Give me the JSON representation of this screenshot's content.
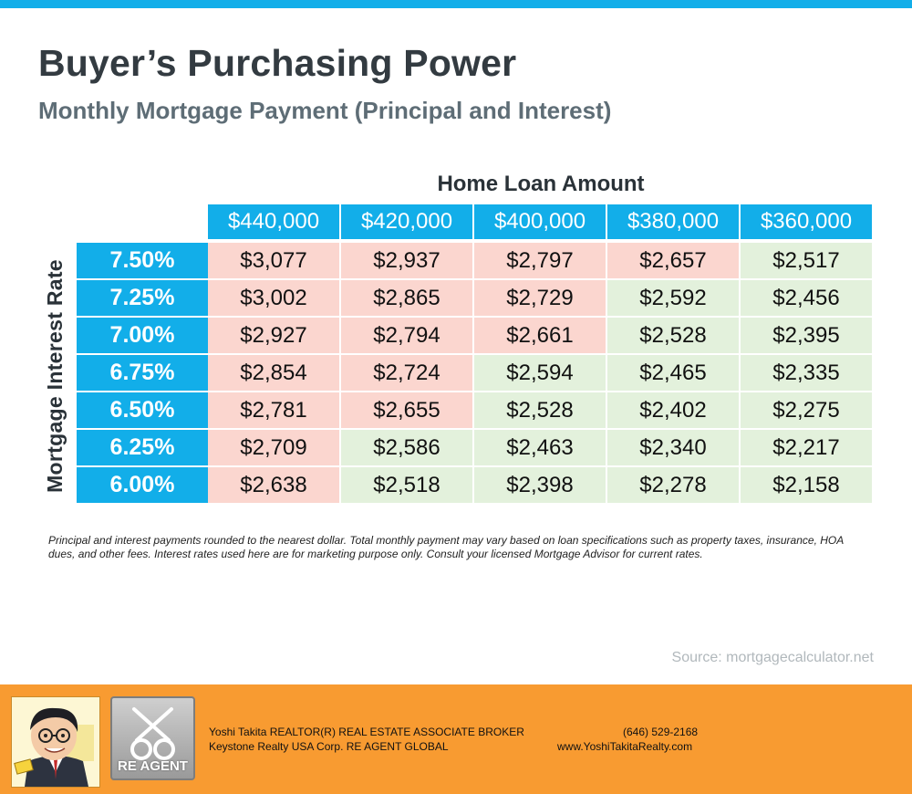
{
  "title": "Buyer’s Purchasing Power",
  "subtitle": "Monthly Mortgage Payment (Principal and Interest)",
  "table": {
    "column_axis_label": "Home Loan Amount",
    "row_axis_label": "Mortgage Interest Rate",
    "loan_amounts": [
      "$440,000",
      "$420,000",
      "$400,000",
      "$380,000",
      "$360,000"
    ],
    "rows": [
      {
        "rate": "7.50%",
        "payments": [
          "$3,077",
          "$2,937",
          "$2,797",
          "$2,657",
          "$2,517"
        ],
        "tiers": [
          "high",
          "high",
          "high",
          "high",
          "low"
        ]
      },
      {
        "rate": "7.25%",
        "payments": [
          "$3,002",
          "$2,865",
          "$2,729",
          "$2,592",
          "$2,456"
        ],
        "tiers": [
          "high",
          "high",
          "high",
          "low",
          "low"
        ]
      },
      {
        "rate": "7.00%",
        "payments": [
          "$2,927",
          "$2,794",
          "$2,661",
          "$2,528",
          "$2,395"
        ],
        "tiers": [
          "high",
          "high",
          "high",
          "low",
          "low"
        ]
      },
      {
        "rate": "6.75%",
        "payments": [
          "$2,854",
          "$2,724",
          "$2,594",
          "$2,465",
          "$2,335"
        ],
        "tiers": [
          "high",
          "high",
          "low",
          "low",
          "low"
        ]
      },
      {
        "rate": "6.50%",
        "payments": [
          "$2,781",
          "$2,655",
          "$2,528",
          "$2,402",
          "$2,275"
        ],
        "tiers": [
          "high",
          "high",
          "low",
          "low",
          "low"
        ]
      },
      {
        "rate": "6.25%",
        "payments": [
          "$2,709",
          "$2,586",
          "$2,463",
          "$2,340",
          "$2,217"
        ],
        "tiers": [
          "high",
          "low",
          "low",
          "low",
          "low"
        ]
      },
      {
        "rate": "6.00%",
        "payments": [
          "$2,638",
          "$2,518",
          "$2,398",
          "$2,278",
          "$2,158"
        ],
        "tiers": [
          "high",
          "low",
          "low",
          "low",
          "low"
        ]
      }
    ]
  },
  "disclaimer": "Principal and interest payments rounded to the nearest dollar. Total monthly payment may vary based on loan specifications such as property taxes, insurance, HOA dues, and other fees. Interest rates used here are for marketing purpose only. Consult your licensed Mortgage Advisor for current rates.",
  "source": "Source: mortgagecalculator.net",
  "footer": {
    "logo_text": "RE AGENT",
    "agent_name_line": "Yoshi Takita REALTOR(R) REAL ESTATE ASSOCIATE BROKER",
    "company_line": "Keystone Realty USA Corp.  RE AGENT GLOBAL",
    "phone": "(646) 529-2168",
    "website": "www.YoshiTakitaRealty.com"
  },
  "colors": {
    "accent_blue": "#12aee9",
    "high_payment": "#fbd6cf",
    "low_payment": "#e3f1dc",
    "footer_orange": "#f89b31"
  }
}
